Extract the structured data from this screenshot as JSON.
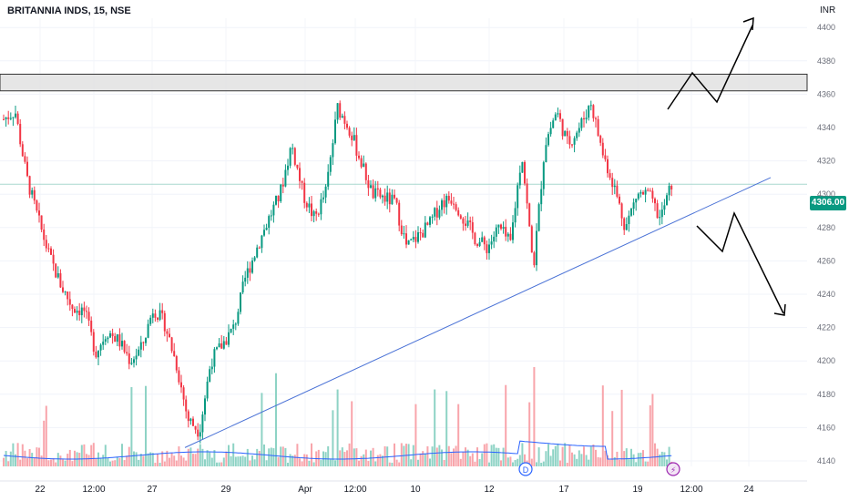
{
  "header": {
    "title": "BRITANNIA INDS, 15, NSE",
    "currency": "INR"
  },
  "price_badge": {
    "label": "4306.00",
    "color": "#089981"
  },
  "colors": {
    "up": "#089981",
    "down": "#f23645",
    "up_volume": "#8ed3c5",
    "down_volume": "#f8a5ab",
    "trendline": "#4a72d6",
    "volume_ma": "#2962ff",
    "zone_fill": "#e0e0e0",
    "zone_border": "#333333",
    "arrow": "#000000",
    "current_price_line": "#a8d8cf"
  },
  "markers": [
    {
      "label": "D",
      "color": "#2962ff",
      "icon": "dividend-marker"
    },
    {
      "label": "⚡",
      "color": "#9c27b0",
      "icon": "flash-icon"
    }
  ],
  "chart_data": {
    "type": "candlestick",
    "title": "BRITANNIA INDS, 15, NSE",
    "ylabel": "INR",
    "ylim": [
      4130,
      4430
    ],
    "yticks": [
      4140,
      4160,
      4180,
      4200,
      4220,
      4240,
      4260,
      4280,
      4300,
      4320,
      4340,
      4360,
      4380,
      4400,
      4420
    ],
    "xtick_labels": [
      "22",
      "12:00",
      "27",
      "29",
      "Apr",
      "12:00",
      "10",
      "12",
      "17",
      "19",
      "12:00",
      "24"
    ],
    "grid": true,
    "last_price": 4306.0,
    "resistance_zone": [
      4362,
      4372
    ],
    "trendline": {
      "from_price": 4148,
      "to_price": 4310
    },
    "close_path": [
      4345,
      4350,
      4310,
      4285,
      4262,
      4245,
      4232,
      4230,
      4205,
      4218,
      4212,
      4200,
      4208,
      4232,
      4222,
      4198,
      4165,
      4158,
      4200,
      4210,
      4220,
      4250,
      4268,
      4285,
      4300,
      4330,
      4300,
      4285,
      4302,
      4352,
      4340,
      4320,
      4300,
      4298,
      4295,
      4268,
      4275,
      4282,
      4295,
      4298,
      4285,
      4273,
      4268,
      4280,
      4270,
      4325,
      4255,
      4330,
      4350,
      4330,
      4340,
      4355,
      4325,
      4305,
      4280,
      4300,
      4300,
      4285,
      4306
    ]
  }
}
